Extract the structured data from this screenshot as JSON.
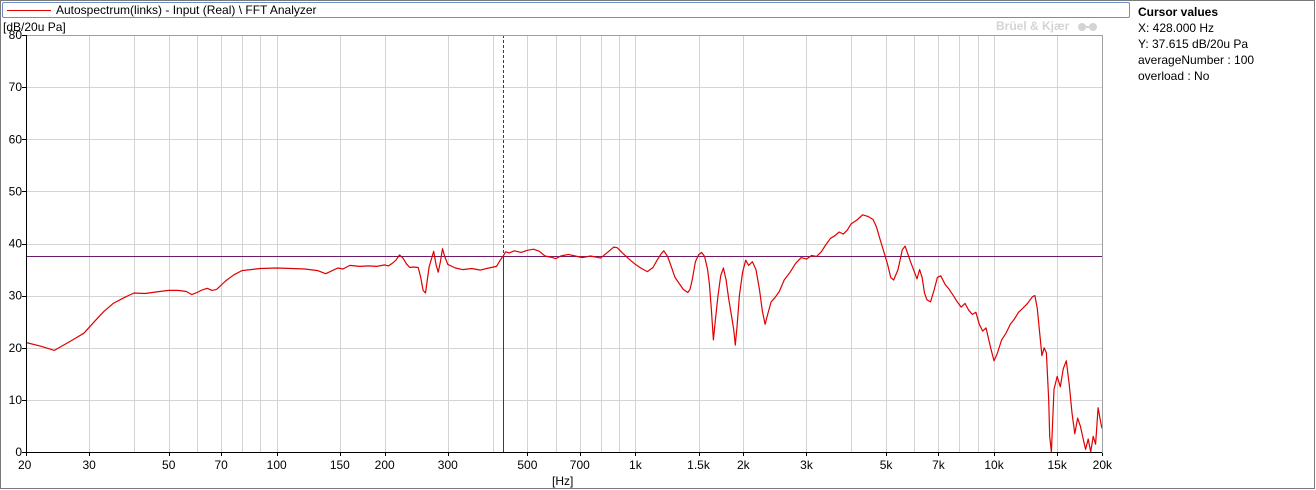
{
  "window": {
    "legend_text": "Autospectrum(links) - Input (Real) \\ FFT Analyzer",
    "brand_text": "Brüel & Kjær",
    "y_unit_label": "[dB/20u Pa]",
    "x_unit_label": "[Hz]"
  },
  "cursor_panel": {
    "title": "Cursor values",
    "x_line": "X: 428.000 Hz",
    "y_line": "Y: 37.615 dB/20u Pa",
    "average_line": "averageNumber : 100",
    "overload_line": "overload : No"
  },
  "colors": {
    "trace": "#e00000",
    "cursor": "#6a1b6a",
    "grid": "#d4d4d4",
    "axis": "#000000",
    "brand": "#d4d4d4"
  },
  "chart_data": {
    "type": "line",
    "x_scale": "log",
    "xlim": [
      20,
      20000
    ],
    "ylim": [
      0,
      80
    ],
    "grid": true,
    "xlabel": "[Hz]",
    "ylabel": "[dB/20u Pa]",
    "x_ticks": [
      {
        "value": 20,
        "label": "20"
      },
      {
        "value": 30,
        "label": "30"
      },
      {
        "value": 50,
        "label": "50"
      },
      {
        "value": 70,
        "label": "70"
      },
      {
        "value": 100,
        "label": "100"
      },
      {
        "value": 150,
        "label": "150"
      },
      {
        "value": 200,
        "label": "200"
      },
      {
        "value": 300,
        "label": "300"
      },
      {
        "value": 500,
        "label": "500"
      },
      {
        "value": 700,
        "label": "700"
      },
      {
        "value": 1000,
        "label": "1k"
      },
      {
        "value": 1500,
        "label": "1.5k"
      },
      {
        "value": 2000,
        "label": "2k"
      },
      {
        "value": 3000,
        "label": "3k"
      },
      {
        "value": 5000,
        "label": "5k"
      },
      {
        "value": 7000,
        "label": "7k"
      },
      {
        "value": 10000,
        "label": "10k"
      },
      {
        "value": 15000,
        "label": "15k"
      },
      {
        "value": 20000,
        "label": "20k"
      }
    ],
    "x_grid": [
      20,
      30,
      40,
      50,
      60,
      70,
      80,
      90,
      100,
      150,
      200,
      300,
      400,
      500,
      600,
      700,
      800,
      900,
      1000,
      1500,
      2000,
      3000,
      4000,
      5000,
      6000,
      7000,
      8000,
      9000,
      10000,
      15000,
      20000
    ],
    "y_ticks": [
      0,
      10,
      20,
      30,
      40,
      50,
      60,
      70,
      80
    ],
    "cursor": {
      "x": 428,
      "y": 37.615
    },
    "series": [
      {
        "color": "#e00000",
        "points": [
          [
            20,
            21
          ],
          [
            22,
            20.3
          ],
          [
            24,
            19.5
          ],
          [
            27,
            21.5
          ],
          [
            29,
            22.8
          ],
          [
            31,
            25
          ],
          [
            33,
            27
          ],
          [
            35,
            28.5
          ],
          [
            38,
            29.8
          ],
          [
            40,
            30.5
          ],
          [
            43,
            30.4
          ],
          [
            46,
            30.7
          ],
          [
            50,
            31
          ],
          [
            53,
            31
          ],
          [
            56,
            30.8
          ],
          [
            58,
            30.2
          ],
          [
            60,
            30.6
          ],
          [
            62,
            31.1
          ],
          [
            64,
            31.4
          ],
          [
            66,
            31
          ],
          [
            68,
            31.2
          ],
          [
            72,
            32.8
          ],
          [
            76,
            34
          ],
          [
            80,
            34.8
          ],
          [
            90,
            35.2
          ],
          [
            100,
            35.3
          ],
          [
            110,
            35.2
          ],
          [
            120,
            35.1
          ],
          [
            130,
            34.8
          ],
          [
            137,
            34.2
          ],
          [
            143,
            34.8
          ],
          [
            148,
            35.3
          ],
          [
            153,
            35.1
          ],
          [
            160,
            35.8
          ],
          [
            170,
            35.6
          ],
          [
            180,
            35.7
          ],
          [
            190,
            35.6
          ],
          [
            200,
            35.9
          ],
          [
            205,
            35.7
          ],
          [
            210,
            36.2
          ],
          [
            215,
            36.8
          ],
          [
            220,
            37.8
          ],
          [
            225,
            37.2
          ],
          [
            230,
            36.1
          ],
          [
            235,
            35.4
          ],
          [
            240,
            35.5
          ],
          [
            248,
            35.4
          ],
          [
            252,
            33.5
          ],
          [
            256,
            31
          ],
          [
            260,
            30.5
          ],
          [
            263,
            33
          ],
          [
            266,
            35.5
          ],
          [
            270,
            37
          ],
          [
            274,
            38.5
          ],
          [
            278,
            36
          ],
          [
            282,
            34.5
          ],
          [
            286,
            36.5
          ],
          [
            290,
            39
          ],
          [
            294,
            37.5
          ],
          [
            300,
            36
          ],
          [
            315,
            35.3
          ],
          [
            330,
            35
          ],
          [
            350,
            35.2
          ],
          [
            370,
            34.9
          ],
          [
            390,
            35.3
          ],
          [
            410,
            35.6
          ],
          [
            420,
            36.8
          ],
          [
            428,
            37.6
          ],
          [
            435,
            38.4
          ],
          [
            445,
            38.2
          ],
          [
            460,
            38.6
          ],
          [
            480,
            38.3
          ],
          [
            500,
            38.7
          ],
          [
            520,
            38.9
          ],
          [
            540,
            38.5
          ],
          [
            560,
            37.6
          ],
          [
            580,
            37.4
          ],
          [
            600,
            37.1
          ],
          [
            620,
            37.6
          ],
          [
            650,
            37.9
          ],
          [
            680,
            37.6
          ],
          [
            710,
            37.3
          ],
          [
            750,
            37.6
          ],
          [
            800,
            37.2
          ],
          [
            840,
            38.4
          ],
          [
            870,
            39.3
          ],
          [
            890,
            39.2
          ],
          [
            920,
            38.2
          ],
          [
            960,
            37
          ],
          [
            1000,
            36
          ],
          [
            1040,
            35.2
          ],
          [
            1080,
            34.6
          ],
          [
            1120,
            35.4
          ],
          [
            1150,
            36.8
          ],
          [
            1180,
            38
          ],
          [
            1200,
            38.6
          ],
          [
            1230,
            37.5
          ],
          [
            1260,
            35.5
          ],
          [
            1290,
            33.5
          ],
          [
            1320,
            32.5
          ],
          [
            1360,
            31.2
          ],
          [
            1400,
            30.6
          ],
          [
            1420,
            31.2
          ],
          [
            1440,
            33
          ],
          [
            1470,
            36.5
          ],
          [
            1500,
            37.8
          ],
          [
            1530,
            38.3
          ],
          [
            1560,
            37.5
          ],
          [
            1590,
            35
          ],
          [
            1610,
            32
          ],
          [
            1630,
            27
          ],
          [
            1650,
            21.5
          ],
          [
            1670,
            25
          ],
          [
            1700,
            30
          ],
          [
            1730,
            33.8
          ],
          [
            1760,
            35.3
          ],
          [
            1790,
            33
          ],
          [
            1820,
            29.5
          ],
          [
            1850,
            26.5
          ],
          [
            1880,
            23.5
          ],
          [
            1900,
            20.5
          ],
          [
            1920,
            24
          ],
          [
            1950,
            30
          ],
          [
            1990,
            34.5
          ],
          [
            2030,
            36.8
          ],
          [
            2070,
            35.8
          ],
          [
            2120,
            36.5
          ],
          [
            2170,
            35
          ],
          [
            2220,
            31
          ],
          [
            2260,
            27
          ],
          [
            2300,
            24.5
          ],
          [
            2340,
            26.5
          ],
          [
            2390,
            28.8
          ],
          [
            2450,
            29.6
          ],
          [
            2520,
            30.8
          ],
          [
            2600,
            33
          ],
          [
            2700,
            34.5
          ],
          [
            2800,
            36.2
          ],
          [
            2900,
            37.3
          ],
          [
            3000,
            37
          ],
          [
            3100,
            37.7
          ],
          [
            3200,
            37.5
          ],
          [
            3300,
            38.4
          ],
          [
            3400,
            39.8
          ],
          [
            3500,
            41
          ],
          [
            3600,
            41.5
          ],
          [
            3700,
            42.2
          ],
          [
            3800,
            41.8
          ],
          [
            3900,
            42.6
          ],
          [
            4000,
            43.8
          ],
          [
            4150,
            44.5
          ],
          [
            4300,
            45.5
          ],
          [
            4450,
            45.2
          ],
          [
            4600,
            44.6
          ],
          [
            4700,
            43.2
          ],
          [
            4850,
            40
          ],
          [
            4950,
            38
          ],
          [
            5050,
            36
          ],
          [
            5150,
            33.5
          ],
          [
            5250,
            33
          ],
          [
            5400,
            35
          ],
          [
            5550,
            38.8
          ],
          [
            5650,
            39.5
          ],
          [
            5750,
            38
          ],
          [
            5850,
            36.5
          ],
          [
            6000,
            34.5
          ],
          [
            6100,
            33.2
          ],
          [
            6200,
            35
          ],
          [
            6300,
            33.5
          ],
          [
            6400,
            30.5
          ],
          [
            6500,
            29.2
          ],
          [
            6650,
            28.8
          ],
          [
            6800,
            31
          ],
          [
            6950,
            33.5
          ],
          [
            7100,
            33.8
          ],
          [
            7300,
            32.2
          ],
          [
            7500,
            31.2
          ],
          [
            7700,
            30
          ],
          [
            7900,
            28.8
          ],
          [
            8100,
            27.8
          ],
          [
            8300,
            28.5
          ],
          [
            8500,
            27.2
          ],
          [
            8700,
            26.4
          ],
          [
            8900,
            26.8
          ],
          [
            9100,
            24.5
          ],
          [
            9300,
            23.2
          ],
          [
            9500,
            23.8
          ],
          [
            9800,
            19.8
          ],
          [
            10000,
            17.5
          ],
          [
            10200,
            18.8
          ],
          [
            10500,
            21.5
          ],
          [
            10800,
            22.8
          ],
          [
            11100,
            24.5
          ],
          [
            11400,
            25.5
          ],
          [
            11700,
            26.8
          ],
          [
            12000,
            27.5
          ],
          [
            12400,
            28.5
          ],
          [
            12800,
            29.8
          ],
          [
            13000,
            30
          ],
          [
            13200,
            27.5
          ],
          [
            13400,
            23
          ],
          [
            13600,
            18.5
          ],
          [
            13800,
            20
          ],
          [
            14000,
            19
          ],
          [
            14200,
            10
          ],
          [
            14300,
            3
          ],
          [
            14450,
            0
          ],
          [
            14700,
            12
          ],
          [
            15000,
            14.5
          ],
          [
            15300,
            12.5
          ],
          [
            15600,
            16
          ],
          [
            15900,
            17.5
          ],
          [
            16200,
            13
          ],
          [
            16500,
            7.5
          ],
          [
            16800,
            3.5
          ],
          [
            17100,
            6.5
          ],
          [
            17400,
            5
          ],
          [
            17800,
            2
          ],
          [
            18000,
            0.5
          ],
          [
            18300,
            2.5
          ],
          [
            18600,
            0
          ],
          [
            18900,
            3
          ],
          [
            19200,
            1.5
          ],
          [
            19500,
            8.5
          ],
          [
            19800,
            6
          ],
          [
            20000,
            4.5
          ]
        ]
      }
    ]
  }
}
